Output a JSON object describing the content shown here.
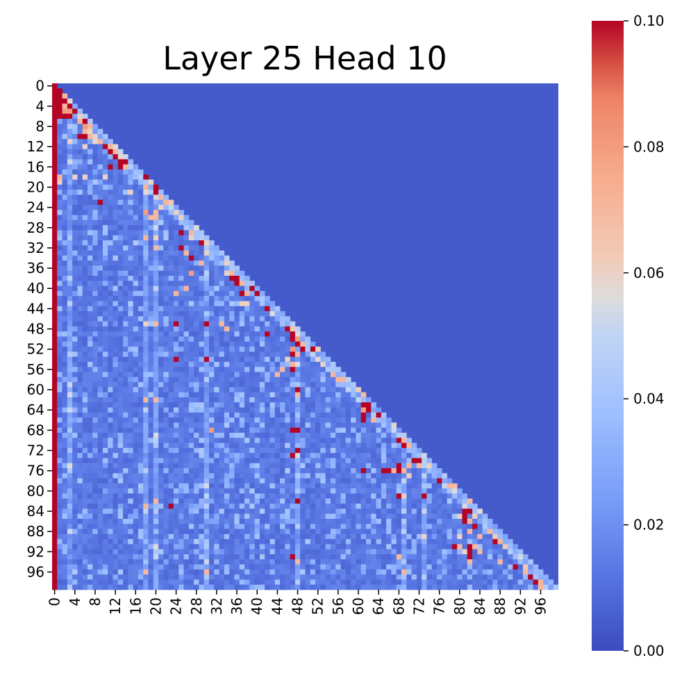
{
  "chart_data": {
    "type": "heatmap",
    "title": "Layer 25 Head 10",
    "xlabel": "",
    "ylabel": "",
    "n": 100,
    "x_tick_labels": [
      "0",
      "4",
      "8",
      "12",
      "16",
      "20",
      "24",
      "28",
      "32",
      "36",
      "40",
      "44",
      "48",
      "52",
      "56",
      "60",
      "64",
      "68",
      "72",
      "76",
      "80",
      "84",
      "88",
      "92",
      "96"
    ],
    "y_tick_labels": [
      "0",
      "4",
      "8",
      "12",
      "16",
      "20",
      "24",
      "28",
      "32",
      "36",
      "40",
      "44",
      "48",
      "52",
      "56",
      "60",
      "64",
      "68",
      "72",
      "76",
      "80",
      "84",
      "88",
      "92",
      "96"
    ],
    "colorbar": {
      "min": 0.0,
      "max": 0.1,
      "tick_labels": [
        "0.00",
        "0.02",
        "0.04",
        "0.06",
        "0.08",
        "0.10"
      ],
      "tick_values": [
        0.0,
        0.02,
        0.04,
        0.06,
        0.08,
        0.1
      ],
      "colormap": "coolwarm"
    },
    "mask": "upper triangle above diagonal is near 0.00",
    "column0_value": 0.1,
    "hot_cells": [
      [
        1,
        1,
        0.1
      ],
      [
        2,
        1,
        0.1
      ],
      [
        2,
        2,
        0.07
      ],
      [
        3,
        1,
        0.1
      ],
      [
        3,
        2,
        0.1
      ],
      [
        4,
        1,
        0.1
      ],
      [
        4,
        2,
        0.07
      ],
      [
        4,
        3,
        0.1
      ],
      [
        5,
        1,
        0.1
      ],
      [
        5,
        2,
        0.08
      ],
      [
        5,
        3,
        0.08
      ],
      [
        5,
        4,
        0.1
      ],
      [
        6,
        1,
        0.1
      ],
      [
        6,
        2,
        0.1
      ],
      [
        6,
        3,
        0.1
      ],
      [
        6,
        5,
        0.06
      ],
      [
        7,
        5,
        0.07
      ],
      [
        7,
        6,
        0.1
      ],
      [
        8,
        6,
        0.08
      ],
      [
        8,
        7,
        0.07
      ],
      [
        9,
        6,
        0.07
      ],
      [
        9,
        7,
        0.06
      ],
      [
        10,
        5,
        0.1
      ],
      [
        10,
        6,
        0.1
      ],
      [
        10,
        7,
        0.07
      ],
      [
        10,
        8,
        0.06
      ],
      [
        11,
        3,
        0.06
      ],
      [
        11,
        8,
        0.06
      ],
      [
        11,
        9,
        0.07
      ],
      [
        12,
        6,
        0.06
      ],
      [
        12,
        10,
        0.1
      ],
      [
        12,
        11,
        0.07
      ],
      [
        13,
        11,
        0.1
      ],
      [
        13,
        12,
        0.07
      ],
      [
        14,
        12,
        0.1
      ],
      [
        15,
        13,
        0.1
      ],
      [
        15,
        14,
        0.1
      ],
      [
        16,
        11,
        0.1
      ],
      [
        16,
        13,
        0.1
      ],
      [
        16,
        14,
        0.07
      ],
      [
        18,
        1,
        0.07
      ],
      [
        18,
        4,
        0.06
      ],
      [
        18,
        6,
        0.06
      ],
      [
        18,
        10,
        0.06
      ],
      [
        18,
        18,
        0.1
      ],
      [
        19,
        1,
        0.06
      ],
      [
        19,
        19,
        0.06
      ],
      [
        20,
        18,
        0.07
      ],
      [
        20,
        20,
        0.1
      ],
      [
        21,
        15,
        0.06
      ],
      [
        21,
        20,
        0.1
      ],
      [
        22,
        21,
        0.07
      ],
      [
        23,
        9,
        0.1
      ],
      [
        23,
        22,
        0.07
      ],
      [
        24,
        21,
        0.06
      ],
      [
        24,
        23,
        0.05
      ],
      [
        25,
        18,
        0.08
      ],
      [
        25,
        20,
        0.07
      ],
      [
        25,
        24,
        0.06
      ],
      [
        26,
        19,
        0.07
      ],
      [
        26,
        20,
        0.07
      ],
      [
        26,
        25,
        0.06
      ],
      [
        29,
        25,
        0.1
      ],
      [
        29,
        27,
        0.07
      ],
      [
        30,
        18,
        0.07
      ],
      [
        30,
        20,
        0.06
      ],
      [
        30,
        27,
        0.06
      ],
      [
        31,
        29,
        0.1
      ],
      [
        32,
        20,
        0.07
      ],
      [
        32,
        25,
        0.1
      ],
      [
        33,
        26,
        0.07
      ],
      [
        33,
        30,
        0.06
      ],
      [
        34,
        27,
        0.1
      ],
      [
        35,
        29,
        0.07
      ],
      [
        35,
        34,
        0.06
      ],
      [
        37,
        27,
        0.08
      ],
      [
        37,
        34,
        0.06
      ],
      [
        37,
        35,
        0.07
      ],
      [
        38,
        35,
        0.1
      ],
      [
        38,
        36,
        0.1
      ],
      [
        39,
        36,
        0.1
      ],
      [
        39,
        37,
        0.07
      ],
      [
        40,
        26,
        0.07
      ],
      [
        40,
        39,
        0.1
      ],
      [
        41,
        24,
        0.07
      ],
      [
        41,
        37,
        0.1
      ],
      [
        41,
        38,
        0.07
      ],
      [
        41,
        40,
        0.1
      ],
      [
        43,
        37,
        0.06
      ],
      [
        43,
        38,
        0.06
      ],
      [
        44,
        42,
        0.1
      ],
      [
        47,
        18,
        0.06
      ],
      [
        47,
        20,
        0.07
      ],
      [
        47,
        24,
        0.1
      ],
      [
        47,
        30,
        0.1
      ],
      [
        47,
        33,
        0.07
      ],
      [
        48,
        34,
        0.07
      ],
      [
        48,
        46,
        0.1
      ],
      [
        49,
        42,
        0.1
      ],
      [
        49,
        47,
        0.1
      ],
      [
        50,
        47,
        0.1
      ],
      [
        50,
        48,
        0.08
      ],
      [
        51,
        48,
        0.1
      ],
      [
        51,
        49,
        0.07
      ],
      [
        52,
        47,
        0.08
      ],
      [
        52,
        49,
        0.1
      ],
      [
        52,
        51,
        0.1
      ],
      [
        53,
        47,
        0.1
      ],
      [
        53,
        48,
        0.07
      ],
      [
        54,
        24,
        0.1
      ],
      [
        54,
        30,
        0.1
      ],
      [
        54,
        46,
        0.06
      ],
      [
        55,
        47,
        0.07
      ],
      [
        55,
        53,
        0.06
      ],
      [
        56,
        45,
        0.07
      ],
      [
        56,
        47,
        0.1
      ],
      [
        57,
        44,
        0.07
      ],
      [
        57,
        55,
        0.07
      ],
      [
        58,
        56,
        0.07
      ],
      [
        58,
        57,
        0.07
      ],
      [
        60,
        48,
        0.1
      ],
      [
        61,
        48,
        0.07
      ],
      [
        62,
        18,
        0.07
      ],
      [
        62,
        20,
        0.07
      ],
      [
        63,
        61,
        0.1
      ],
      [
        63,
        62,
        0.1
      ],
      [
        64,
        61,
        0.08
      ],
      [
        64,
        62,
        0.1
      ],
      [
        65,
        61,
        0.1
      ],
      [
        65,
        64,
        0.1
      ],
      [
        66,
        61,
        0.1
      ],
      [
        66,
        63,
        0.07
      ],
      [
        68,
        47,
        0.1
      ],
      [
        68,
        48,
        0.1
      ],
      [
        68,
        31,
        0.08
      ],
      [
        70,
        68,
        0.1
      ],
      [
        70,
        69,
        0.07
      ],
      [
        71,
        69,
        0.1
      ],
      [
        71,
        70,
        0.07
      ],
      [
        72,
        48,
        0.1
      ],
      [
        73,
        47,
        0.1
      ],
      [
        74,
        71,
        0.1
      ],
      [
        74,
        72,
        0.1
      ],
      [
        75,
        68,
        0.1
      ],
      [
        75,
        70,
        0.07
      ],
      [
        75,
        72,
        0.07
      ],
      [
        76,
        61,
        0.1
      ],
      [
        76,
        65,
        0.1
      ],
      [
        76,
        66,
        0.1
      ],
      [
        76,
        67,
        0.07
      ],
      [
        76,
        68,
        0.1
      ],
      [
        76,
        69,
        0.07
      ],
      [
        77,
        70,
        0.06
      ],
      [
        78,
        76,
        0.1
      ],
      [
        79,
        78,
        0.07
      ],
      [
        81,
        68,
        0.1
      ],
      [
        81,
        69,
        0.06
      ],
      [
        81,
        73,
        0.1
      ],
      [
        82,
        20,
        0.07
      ],
      [
        82,
        48,
        0.1
      ],
      [
        83,
        18,
        0.07
      ],
      [
        83,
        23,
        0.1
      ],
      [
        84,
        81,
        0.1
      ],
      [
        84,
        82,
        0.1
      ],
      [
        85,
        80,
        0.06
      ],
      [
        85,
        81,
        0.1
      ],
      [
        86,
        81,
        0.1
      ],
      [
        86,
        82,
        0.07
      ],
      [
        87,
        83,
        0.1
      ],
      [
        88,
        82,
        0.07
      ],
      [
        88,
        86,
        0.07
      ],
      [
        89,
        73,
        0.06
      ],
      [
        89,
        80,
        0.06
      ],
      [
        89,
        84,
        0.07
      ],
      [
        90,
        87,
        0.1
      ],
      [
        90,
        88,
        0.07
      ],
      [
        91,
        79,
        0.1
      ],
      [
        91,
        80,
        0.07
      ],
      [
        91,
        82,
        0.1
      ],
      [
        91,
        83,
        0.07
      ],
      [
        92,
        81,
        0.06
      ],
      [
        92,
        82,
        0.1
      ],
      [
        92,
        84,
        0.07
      ],
      [
        93,
        47,
        0.1
      ],
      [
        93,
        68,
        0.07
      ],
      [
        93,
        82,
        0.1
      ],
      [
        94,
        48,
        0.07
      ],
      [
        94,
        82,
        0.07
      ],
      [
        94,
        88,
        0.07
      ],
      [
        95,
        91,
        0.1
      ],
      [
        96,
        18,
        0.07
      ],
      [
        96,
        30,
        0.07
      ],
      [
        96,
        69,
        0.07
      ],
      [
        96,
        93,
        0.07
      ],
      [
        97,
        94,
        0.1
      ],
      [
        98,
        95,
        0.1
      ],
      [
        98,
        96,
        0.07
      ],
      [
        99,
        96,
        0.07
      ]
    ]
  }
}
